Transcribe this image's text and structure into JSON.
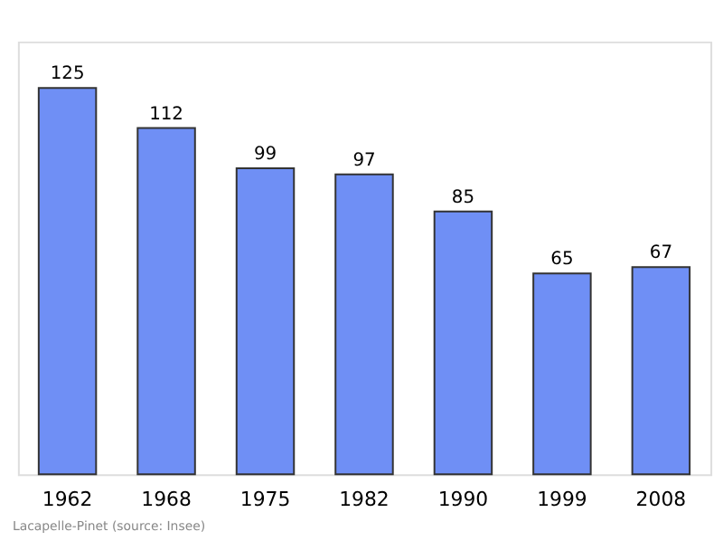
{
  "chart_data": {
    "type": "bar",
    "categories": [
      "1962",
      "1968",
      "1975",
      "1982",
      "1990",
      "1999",
      "2008"
    ],
    "values": [
      125,
      112,
      99,
      97,
      85,
      65,
      67
    ],
    "color": "#6f8ff5",
    "data_labels": true,
    "annotations": [
      "Lacapelle-Pinet    (source: Insee)"
    ]
  }
}
